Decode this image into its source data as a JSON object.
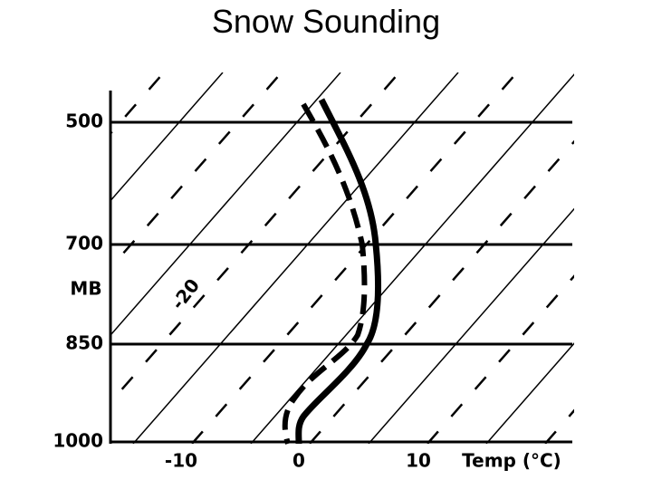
{
  "title": "Snow Sounding",
  "pressure_labels": [
    "500",
    "700",
    "850",
    "1000"
  ],
  "pressure_unit": "MB",
  "temperature_labels": [
    "-10",
    "0",
    "10"
  ],
  "temperature_axis_label": "Temp (°C)",
  "isotherm_label": "-20"
}
